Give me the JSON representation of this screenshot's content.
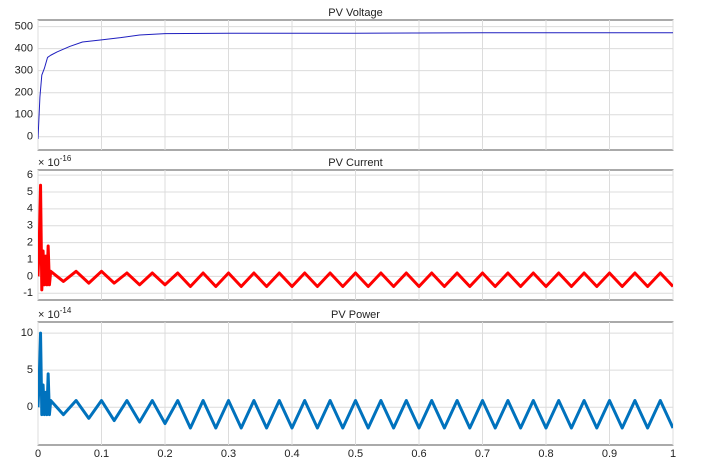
{
  "chart_data": [
    {
      "type": "line",
      "title": "PV Voltage",
      "color": "#1f1fbf",
      "line_width": 1,
      "x": [
        0,
        0.003,
        0.006,
        0.01,
        0.015,
        0.02,
        0.03,
        0.05,
        0.07,
        0.1,
        0.13,
        0.16,
        0.2,
        0.3,
        0.5,
        0.7,
        1
      ],
      "values": [
        -10,
        180,
        280,
        310,
        360,
        370,
        385,
        410,
        430,
        440,
        450,
        462,
        468,
        470,
        470,
        472,
        472
      ],
      "xlim": [
        0,
        1
      ],
      "xticks": [
        0,
        0.1,
        0.2,
        0.3,
        0.4,
        0.5,
        0.6,
        0.7,
        0.8,
        0.9,
        1
      ],
      "x_tick_labels": false,
      "ylim": [
        -60,
        530
      ],
      "yticks": [
        0,
        100,
        200,
        300,
        400,
        500
      ],
      "grid": true
    },
    {
      "type": "line",
      "title": "PV Current",
      "color": "#ff0000",
      "line_width": 3,
      "exponent_label": {
        "base": "× 10",
        "power": "-16"
      },
      "x": [
        0,
        0.002,
        0.004,
        0.006,
        0.008,
        0.01,
        0.012,
        0.014,
        0.016,
        0.018,
        0.02,
        0.04,
        0.06,
        0.08,
        0.1,
        0.12,
        0.14,
        0.16,
        0.18,
        0.2,
        0.22,
        0.24,
        0.26,
        0.28,
        0.3,
        0.32,
        0.34,
        0.36,
        0.38,
        0.4,
        0.42,
        0.44,
        0.46,
        0.48,
        0.5,
        0.52,
        0.54,
        0.56,
        0.58,
        0.6,
        0.62,
        0.64,
        0.66,
        0.68,
        0.7,
        0.72,
        0.74,
        0.76,
        0.78,
        0.8,
        0.82,
        0.84,
        0.86,
        0.88,
        0.9,
        0.92,
        0.94,
        0.96,
        0.98,
        1
      ],
      "values": [
        0,
        2,
        5.4,
        -0.8,
        1.5,
        -0.5,
        1.2,
        -0.5,
        1.8,
        -0.5,
        0.3,
        -0.3,
        0.3,
        -0.4,
        0.3,
        -0.4,
        0.2,
        -0.5,
        0.2,
        -0.5,
        0.2,
        -0.6,
        0.2,
        -0.6,
        0.2,
        -0.6,
        0.2,
        -0.6,
        0.2,
        -0.6,
        0.2,
        -0.6,
        0.2,
        -0.6,
        0.2,
        -0.6,
        0.2,
        -0.6,
        0.2,
        -0.6,
        0.2,
        -0.6,
        0.2,
        -0.6,
        0.2,
        -0.6,
        0.2,
        -0.6,
        0.2,
        -0.6,
        0.2,
        -0.6,
        0.2,
        -0.6,
        0.2,
        -0.6,
        0.2,
        -0.6,
        0.2,
        -0.6
      ],
      "xlim": [
        0,
        1
      ],
      "xticks": [
        0,
        0.1,
        0.2,
        0.3,
        0.4,
        0.5,
        0.6,
        0.7,
        0.8,
        0.9,
        1
      ],
      "x_tick_labels": false,
      "ylim": [
        -1.4,
        6.3
      ],
      "yticks": [
        -1,
        0,
        1,
        2,
        3,
        4,
        5,
        6
      ],
      "grid": true
    },
    {
      "type": "line",
      "title": "PV Power",
      "color": "#0072bd",
      "line_width": 3,
      "exponent_label": {
        "base": "× 10",
        "power": "-14"
      },
      "x": [
        0,
        0.002,
        0.004,
        0.006,
        0.008,
        0.01,
        0.012,
        0.014,
        0.016,
        0.018,
        0.02,
        0.04,
        0.06,
        0.08,
        0.1,
        0.12,
        0.14,
        0.16,
        0.18,
        0.2,
        0.22,
        0.24,
        0.26,
        0.28,
        0.3,
        0.32,
        0.34,
        0.36,
        0.38,
        0.4,
        0.42,
        0.44,
        0.46,
        0.48,
        0.5,
        0.52,
        0.54,
        0.56,
        0.58,
        0.6,
        0.62,
        0.64,
        0.66,
        0.68,
        0.7,
        0.72,
        0.74,
        0.76,
        0.78,
        0.8,
        0.82,
        0.84,
        0.86,
        0.88,
        0.9,
        0.92,
        0.94,
        0.96,
        0.98,
        1
      ],
      "values": [
        0,
        4,
        10,
        -1,
        3,
        -1,
        2,
        -1,
        4.5,
        -1,
        0.9,
        -1,
        0.9,
        -1.5,
        0.9,
        -1.8,
        0.9,
        -2,
        0.9,
        -2.2,
        0.9,
        -2.8,
        0.9,
        -2.8,
        0.9,
        -2.8,
        0.9,
        -2.8,
        0.9,
        -2.8,
        0.9,
        -2.8,
        0.9,
        -2.8,
        0.9,
        -2.8,
        0.9,
        -2.8,
        0.9,
        -2.8,
        0.9,
        -2.8,
        0.9,
        -2.8,
        0.9,
        -2.8,
        0.9,
        -2.8,
        0.9,
        -2.8,
        0.9,
        -2.8,
        0.9,
        -2.8,
        0.9,
        -2.8,
        0.9,
        -2.8,
        0.9,
        -2.8
      ],
      "xlim": [
        0,
        1
      ],
      "xticks": [
        0,
        0.1,
        0.2,
        0.3,
        0.4,
        0.5,
        0.6,
        0.7,
        0.8,
        0.9,
        1
      ],
      "x_tick_labels": true,
      "ylim": [
        -5.1,
        11.5
      ],
      "yticks": [
        0,
        5,
        10
      ],
      "grid": true
    }
  ]
}
